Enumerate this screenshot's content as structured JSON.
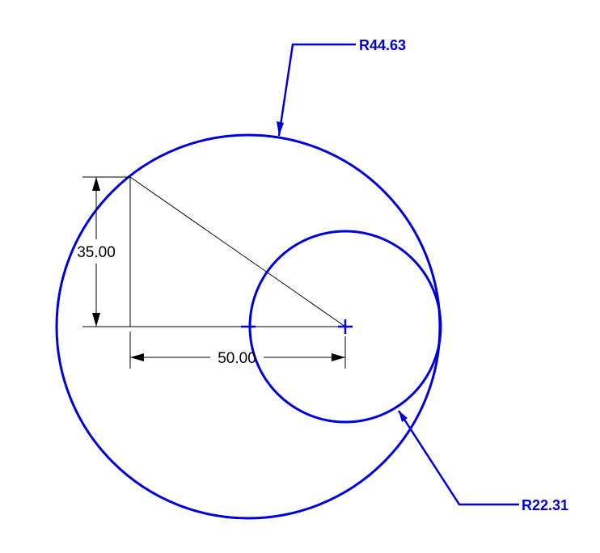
{
  "drawing": {
    "annotation_color": "#0000dd",
    "dimension_color": "#000000",
    "large_circle": {
      "radius_label": "R44.63"
    },
    "small_circle": {
      "radius_label": "R22.31"
    },
    "vertical_dimension": {
      "label": "35.00"
    },
    "horizontal_dimension": {
      "label": "50.00"
    }
  }
}
